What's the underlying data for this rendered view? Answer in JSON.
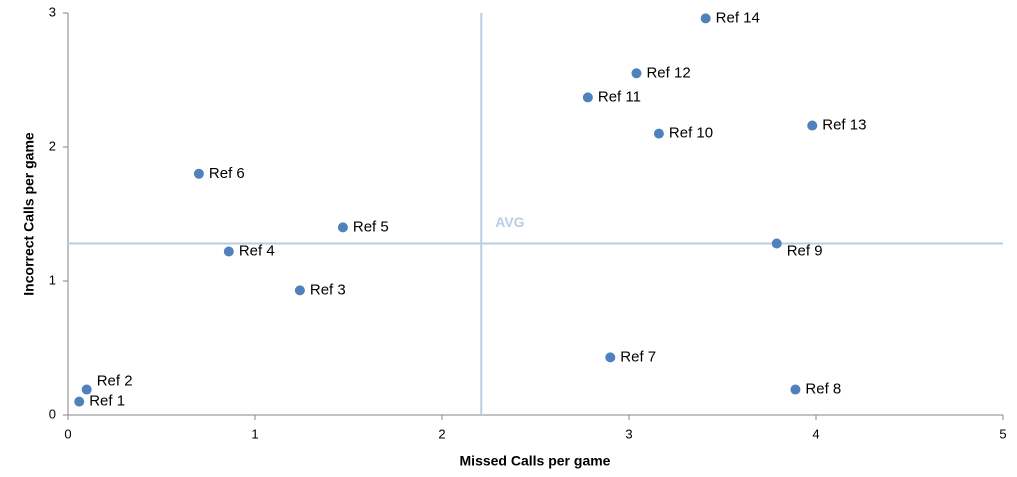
{
  "chart_data": {
    "type": "scatter",
    "x_label": "Missed Calls per game",
    "y_label": "Incorrect Calls per game",
    "color": "#4f81bd",
    "names": [
      "Ref 1",
      "Ref 2",
      "Ref 3",
      "Ref 4",
      "Ref 5",
      "Ref 6",
      "Ref 7",
      "Ref 8",
      "Ref 9",
      "Ref 10",
      "Ref 11",
      "Ref 12",
      "Ref 13",
      "Ref 14"
    ],
    "x": [
      0.06,
      0.1,
      1.24,
      0.86,
      1.47,
      0.7,
      2.9,
      3.89,
      3.79,
      3.16,
      2.78,
      3.04,
      3.98,
      3.41
    ],
    "y": [
      0.1,
      0.19,
      0.93,
      1.22,
      1.4,
      1.8,
      0.43,
      0.19,
      1.28,
      2.1,
      2.37,
      2.55,
      2.16,
      2.96
    ],
    "xlim": [
      0,
      5
    ],
    "xticks": [
      0,
      1,
      2,
      3,
      4,
      5
    ],
    "ylim": [
      0,
      3
    ],
    "yticks": [
      0,
      1,
      2,
      3
    ],
    "avg": {
      "label": "AVG",
      "x": 2.21,
      "y": 1.28,
      "color": "#b9cde5"
    }
  }
}
